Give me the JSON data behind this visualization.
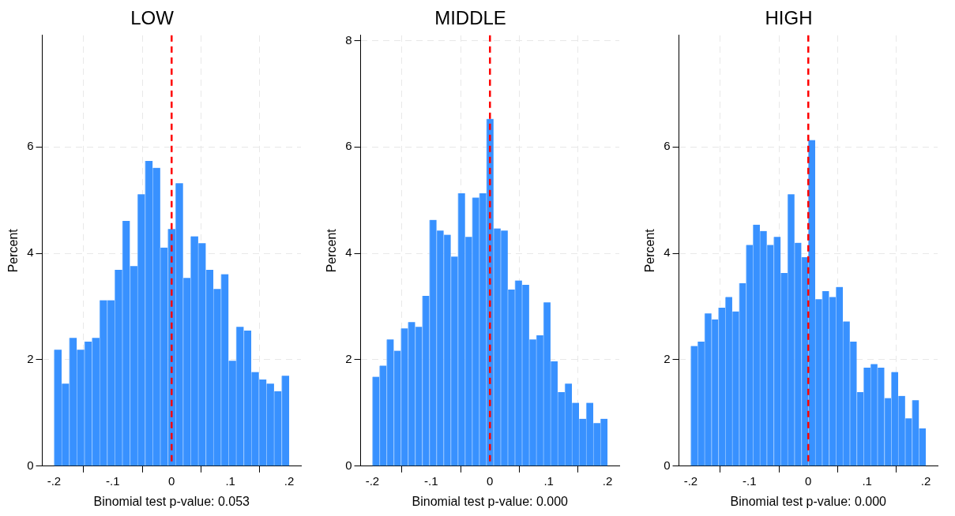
{
  "chart_data": [
    {
      "type": "histogram",
      "title": "LOW",
      "xlabel": "Binomial test p-value: 0.053",
      "ylabel": "Percent",
      "color": "#3891ff",
      "bins": [
        -0.2,
        -0.1871,
        -0.1742,
        -0.1613,
        -0.1484,
        -0.1355,
        -0.1226,
        -0.1097,
        -0.0968,
        -0.0839,
        -0.071,
        -0.0581,
        -0.0452,
        -0.0323,
        -0.0194,
        -0.0065,
        0.0065,
        0.0194,
        0.0323,
        0.0452,
        0.0581,
        0.071,
        0.0839,
        0.0968,
        0.1097,
        0.1226,
        0.1355,
        0.1484,
        0.1613,
        0.1742,
        0.1871,
        0.2
      ],
      "values": [
        2.19,
        1.55,
        2.41,
        2.19,
        2.34,
        2.41,
        3.12,
        3.12,
        3.69,
        4.61,
        3.76,
        5.11,
        5.74,
        5.61,
        4.11,
        4.46,
        5.32,
        3.54,
        4.32,
        4.19,
        3.69,
        3.33,
        3.61,
        1.98,
        2.62,
        2.55,
        1.77,
        1.63,
        1.55,
        1.41,
        1.7
      ],
      "xlim": [
        -0.22,
        0.22
      ],
      "xticks": [
        {
          "value": -0.2,
          "label": "-.2"
        },
        {
          "value": -0.1,
          "label": "-.1"
        },
        {
          "value": 0,
          "label": "0"
        },
        {
          "value": 0.1,
          "label": ".1"
        },
        {
          "value": 0.2,
          "label": ".2"
        }
      ],
      "ylim": [
        0,
        8.1
      ],
      "yticks": [
        0,
        2,
        4,
        6
      ],
      "grid": true,
      "legend": false,
      "ref_lines": [
        {
          "axis": "x",
          "value": 0,
          "color": "#ff0000",
          "line_style": "dashed"
        }
      ]
    },
    {
      "type": "histogram",
      "title": "MIDDLE",
      "xlabel": "Binomial test p-value: 0.000",
      "ylabel": "Percent",
      "color": "#3891ff",
      "bins": [
        -0.2,
        -0.1879,
        -0.1758,
        -0.1636,
        -0.1515,
        -0.1394,
        -0.1273,
        -0.1152,
        -0.103,
        -0.0909,
        -0.0788,
        -0.0667,
        -0.0545,
        -0.0424,
        -0.0303,
        -0.0182,
        -0.0061,
        0.0061,
        0.0182,
        0.0303,
        0.0424,
        0.0545,
        0.0667,
        0.0788,
        0.0909,
        0.103,
        0.1152,
        0.1273,
        0.1394,
        0.1515,
        0.1636,
        0.1758,
        0.1879,
        0.2
      ],
      "values": [
        1.68,
        1.89,
        2.38,
        2.17,
        2.59,
        2.71,
        2.62,
        3.2,
        4.63,
        4.43,
        4.35,
        3.94,
        5.13,
        4.31,
        5.05,
        5.13,
        6.53,
        4.47,
        4.43,
        3.32,
        3.49,
        3.41,
        2.38,
        2.46,
        3.08,
        1.97,
        1.39,
        1.55,
        1.19,
        0.89,
        1.19,
        0.81,
        0.89
      ],
      "xlim": [
        -0.22,
        0.22
      ],
      "xticks": [
        {
          "value": -0.2,
          "label": "-.2"
        },
        {
          "value": -0.1,
          "label": "-.1"
        },
        {
          "value": 0,
          "label": "0"
        },
        {
          "value": 0.1,
          "label": ".1"
        },
        {
          "value": 0.2,
          "label": ".2"
        }
      ],
      "ylim": [
        0,
        8.1
      ],
      "yticks": [
        0,
        2,
        4,
        6,
        8
      ],
      "grid": true,
      "legend": false,
      "ref_lines": [
        {
          "axis": "x",
          "value": 0,
          "color": "#ff0000",
          "line_style": "dashed"
        }
      ]
    },
    {
      "type": "histogram",
      "title": "HIGH",
      "xlabel": "Binomial test p-value: 0.000",
      "ylabel": "Percent",
      "color": "#3891ff",
      "bins": [
        -0.2,
        -0.1882,
        -0.1765,
        -0.1647,
        -0.1529,
        -0.1412,
        -0.1294,
        -0.1176,
        -0.1059,
        -0.0941,
        -0.0824,
        -0.0706,
        -0.0588,
        -0.0471,
        -0.0353,
        -0.0235,
        -0.0118,
        0,
        0.0118,
        0.0235,
        0.0353,
        0.0471,
        0.0588,
        0.0706,
        0.0824,
        0.0941,
        0.1059,
        0.1176,
        0.1294,
        0.1412,
        0.1529,
        0.1647,
        0.1765,
        0.1882,
        0.2
      ],
      "values": [
        2.26,
        2.34,
        2.87,
        2.76,
        2.98,
        3.18,
        2.91,
        3.44,
        4.16,
        4.54,
        4.42,
        4.16,
        4.31,
        3.63,
        5.11,
        4.2,
        3.93,
        6.13,
        3.14,
        3.29,
        3.18,
        3.37,
        2.72,
        2.34,
        1.39,
        1.85,
        1.92,
        1.85,
        1.28,
        1.77,
        1.32,
        0.9,
        1.24,
        0.71
      ],
      "xlim": [
        -0.22,
        0.22
      ],
      "xticks": [
        {
          "value": -0.2,
          "label": "-.2"
        },
        {
          "value": -0.1,
          "label": "-.1"
        },
        {
          "value": 0,
          "label": "0"
        },
        {
          "value": 0.1,
          "label": ".1"
        },
        {
          "value": 0.2,
          "label": ".2"
        }
      ],
      "ylim": [
        0,
        8.1
      ],
      "yticks": [
        0,
        2,
        4,
        6
      ],
      "grid": true,
      "legend": false,
      "ref_lines": [
        {
          "axis": "x",
          "value": 0,
          "color": "#ff0000",
          "line_style": "dashed"
        }
      ]
    }
  ]
}
